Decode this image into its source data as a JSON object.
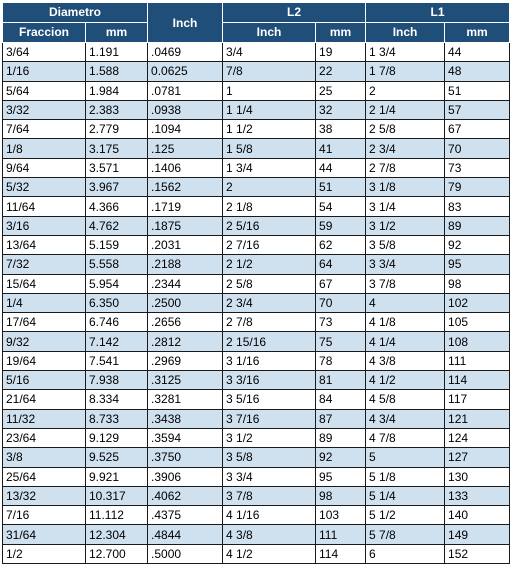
{
  "headers": {
    "diametro": "Diametro",
    "l2": "L2",
    "l1": "L1",
    "fraccion": "Fraccion",
    "mm": "mm",
    "inch": "Inch"
  },
  "row_fill": {
    "white": "#ffffff",
    "blue": "#cfe0ef",
    "header": "#1f4e79"
  },
  "rows": [
    {
      "fraccion": "3/64",
      "mm": "1.191",
      "inch": ".0469",
      "l2_inch": "3/4",
      "l2_mm": "19",
      "l1_inch": "1 3/4",
      "l1_mm": "44"
    },
    {
      "fraccion": "1/16",
      "mm": "1.588",
      "inch": "0.0625",
      "l2_inch": "7/8",
      "l2_mm": "22",
      "l1_inch": "1 7/8",
      "l1_mm": "48"
    },
    {
      "fraccion": "5/64",
      "mm": "1.984",
      "inch": ".0781",
      "l2_inch": "1",
      "l2_mm": "25",
      "l1_inch": "2",
      "l1_mm": "51"
    },
    {
      "fraccion": "3/32",
      "mm": "2.383",
      "inch": ".0938",
      "l2_inch": "1 1/4",
      "l2_mm": "32",
      "l1_inch": "2 1/4",
      "l1_mm": "57"
    },
    {
      "fraccion": "7/64",
      "mm": "2.779",
      "inch": ".1094",
      "l2_inch": "1 1/2",
      "l2_mm": "38",
      "l1_inch": "2 5/8",
      "l1_mm": "67"
    },
    {
      "fraccion": "1/8",
      "mm": "3.175",
      "inch": ".125",
      "l2_inch": "1 5/8",
      "l2_mm": "41",
      "l1_inch": "2 3/4",
      "l1_mm": "70"
    },
    {
      "fraccion": "9/64",
      "mm": "3.571",
      "inch": ".1406",
      "l2_inch": "1 3/4",
      "l2_mm": "44",
      "l1_inch": "2 7/8",
      "l1_mm": "73"
    },
    {
      "fraccion": "5/32",
      "mm": "3.967",
      "inch": ".1562",
      "l2_inch": "2",
      "l2_mm": "51",
      "l1_inch": "3 1/8",
      "l1_mm": "79"
    },
    {
      "fraccion": "11/64",
      "mm": "4.366",
      "inch": ".1719",
      "l2_inch": "2 1/8",
      "l2_mm": "54",
      "l1_inch": "3 1/4",
      "l1_mm": "83"
    },
    {
      "fraccion": "3/16",
      "mm": "4.762",
      "inch": ".1875",
      "l2_inch": "2 5/16",
      "l2_mm": "59",
      "l1_inch": "3 1/2",
      "l1_mm": "89"
    },
    {
      "fraccion": "13/64",
      "mm": "5.159",
      "inch": ".2031",
      "l2_inch": "2 7/16",
      "l2_mm": "62",
      "l1_inch": "3 5/8",
      "l1_mm": "92"
    },
    {
      "fraccion": "7/32",
      "mm": "5.558",
      "inch": ".2188",
      "l2_inch": "2 1/2",
      "l2_mm": "64",
      "l1_inch": "3 3/4",
      "l1_mm": "95"
    },
    {
      "fraccion": "15/64",
      "mm": "5.954",
      "inch": ".2344",
      "l2_inch": "2 5/8",
      "l2_mm": "67",
      "l1_inch": "3 7/8",
      "l1_mm": "98"
    },
    {
      "fraccion": "1/4",
      "mm": "6.350",
      "inch": ".2500",
      "l2_inch": "2 3/4",
      "l2_mm": "70",
      "l1_inch": "4",
      "l1_mm": "102"
    },
    {
      "fraccion": "17/64",
      "mm": "6.746",
      "inch": ".2656",
      "l2_inch": "2 7/8",
      "l2_mm": "73",
      "l1_inch": "4 1/8",
      "l1_mm": "105"
    },
    {
      "fraccion": "9/32",
      "mm": "7.142",
      "inch": ".2812",
      "l2_inch": "2 15/16",
      "l2_mm": "75",
      "l1_inch": "4 1/4",
      "l1_mm": "108"
    },
    {
      "fraccion": "19/64",
      "mm": "7.541",
      "inch": ".2969",
      "l2_inch": "3 1/16",
      "l2_mm": "78",
      "l1_inch": "4 3/8",
      "l1_mm": "111"
    },
    {
      "fraccion": "5/16",
      "mm": "7.938",
      "inch": ".3125",
      "l2_inch": "3 3/16",
      "l2_mm": "81",
      "l1_inch": "4 1/2",
      "l1_mm": "114"
    },
    {
      "fraccion": "21/64",
      "mm": "8.334",
      "inch": ".3281",
      "l2_inch": "3 5/16",
      "l2_mm": "84",
      "l1_inch": "4 5/8",
      "l1_mm": "117"
    },
    {
      "fraccion": "11/32",
      "mm": "8.733",
      "inch": ".3438",
      "l2_inch": "3 7/16",
      "l2_mm": "87",
      "l1_inch": "4 3/4",
      "l1_mm": "121"
    },
    {
      "fraccion": "23/64",
      "mm": "9.129",
      "inch": ".3594",
      "l2_inch": "3 1/2",
      "l2_mm": "89",
      "l1_inch": "4 7/8",
      "l1_mm": "124"
    },
    {
      "fraccion": "3/8",
      "mm": "9.525",
      "inch": ".3750",
      "l2_inch": "3 5/8",
      "l2_mm": "92",
      "l1_inch": "5",
      "l1_mm": "127"
    },
    {
      "fraccion": "25/64",
      "mm": "9.921",
      "inch": ".3906",
      "l2_inch": "3 3/4",
      "l2_mm": "95",
      "l1_inch": "5 1/8",
      "l1_mm": "130"
    },
    {
      "fraccion": "13/32",
      "mm": "10.317",
      "inch": ".4062",
      "l2_inch": "3 7/8",
      "l2_mm": "98",
      "l1_inch": "5 1/4",
      "l1_mm": "133"
    },
    {
      "fraccion": "7/16",
      "mm": "11.112",
      "inch": ".4375",
      "l2_inch": "4 1/16",
      "l2_mm": "103",
      "l1_inch": "5 1/2",
      "l1_mm": "140"
    },
    {
      "fraccion": "31/64",
      "mm": "12.304",
      "inch": ".4844",
      "l2_inch": "4 3/8",
      "l2_mm": "111",
      "l1_inch": "5 7/8",
      "l1_mm": "149"
    },
    {
      "fraccion": "1/2",
      "mm": "12.700",
      "inch": ".5000",
      "l2_inch": "4 1/2",
      "l2_mm": "114",
      "l1_inch": "6",
      "l1_mm": "152"
    }
  ]
}
